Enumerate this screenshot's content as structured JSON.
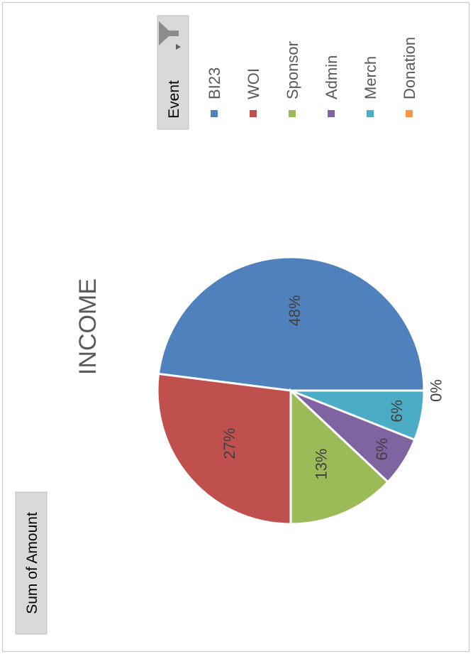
{
  "field_button": {
    "label": "Sum of Amount"
  },
  "legend": {
    "title": "Event",
    "filter_icon": "funnel-filter-icon"
  },
  "chart_data": {
    "type": "pie",
    "title": "INCOME",
    "orientation": "rotated 90deg counter-clockwise",
    "categories": [
      "BI23",
      "WOI",
      "Sponsor",
      "Admin",
      "Merch",
      "Donation"
    ],
    "values": [
      48,
      27,
      13,
      6,
      6,
      0
    ],
    "labels": [
      "48%",
      "27%",
      "13%",
      "6%",
      "6%",
      "0%"
    ],
    "colors": [
      "#4f81bd",
      "#c0504d",
      "#9bbb59",
      "#8064a2",
      "#4bacc6",
      "#f79646"
    ],
    "legend_position": "right"
  }
}
